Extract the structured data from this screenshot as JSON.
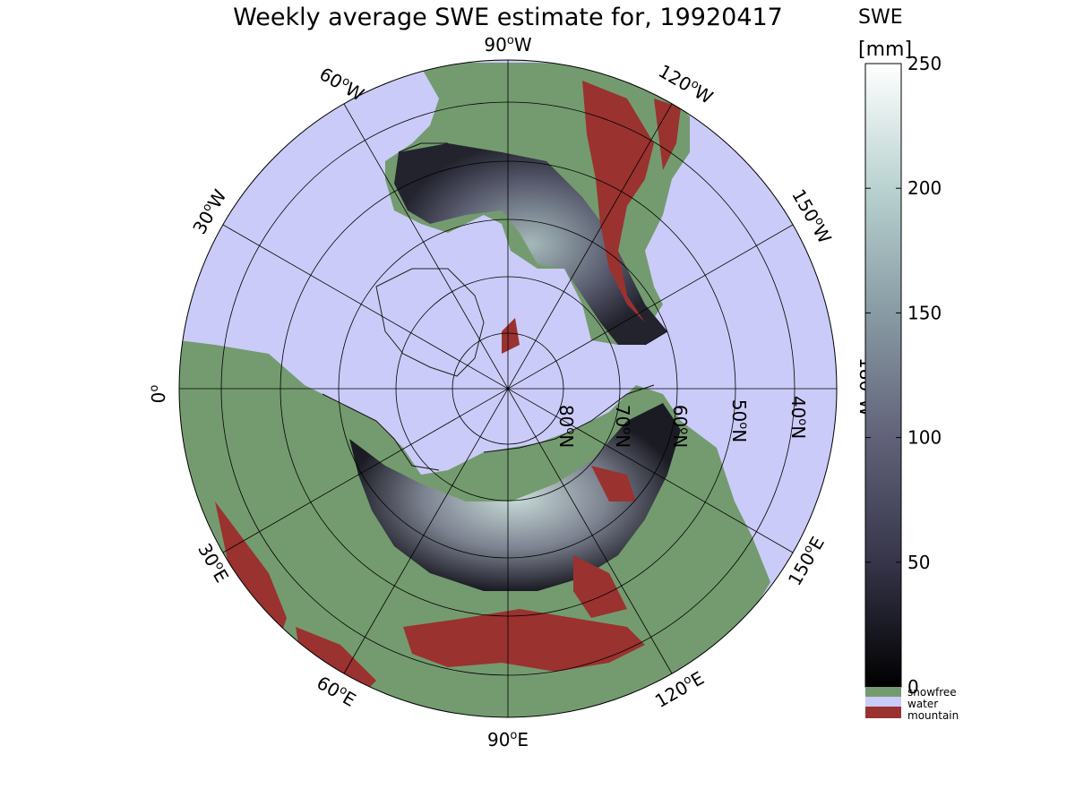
{
  "title": "Weekly average SWE estimate for, 19920417",
  "colorbar": {
    "label_line1": "SWE",
    "label_line2": "[mm]",
    "ticks": [
      "0",
      "50",
      "100",
      "150",
      "200",
      "250"
    ],
    "range": [
      0,
      250
    ],
    "categories": [
      {
        "label": "snowfree",
        "color": "#749b6f"
      },
      {
        "label": "water",
        "color": "#cbcbf9"
      },
      {
        "label": "mountain",
        "color": "#9a3230"
      }
    ]
  },
  "map": {
    "projection": "north polar stereographic",
    "ocean_color": "#cbcbf9",
    "land_color": "#749b6f",
    "mountain_color": "#9a3230",
    "longitude_labels": [
      {
        "label": "90°W",
        "sup": "o",
        "base": "90",
        "dir": "W"
      },
      {
        "label": "60°W",
        "sup": "o",
        "base": "60",
        "dir": "W"
      },
      {
        "label": "120°W",
        "sup": "o",
        "base": "120",
        "dir": "W"
      },
      {
        "label": "30°W",
        "sup": "o",
        "base": "30",
        "dir": "W"
      },
      {
        "label": "150°W",
        "sup": "o",
        "base": "150",
        "dir": "W"
      },
      {
        "label": "0°",
        "sup": "o",
        "base": "0",
        "dir": ""
      },
      {
        "label": "180°W",
        "sup": "o",
        "base": "180",
        "dir": "W"
      },
      {
        "label": "30°E",
        "sup": "o",
        "base": "30",
        "dir": "E"
      },
      {
        "label": "150°E",
        "sup": "o",
        "base": "150",
        "dir": "E"
      },
      {
        "label": "60°E",
        "sup": "o",
        "base": "60",
        "dir": "E"
      },
      {
        "label": "120°E",
        "sup": "o",
        "base": "120",
        "dir": "E"
      },
      {
        "label": "90°E",
        "sup": "o",
        "base": "90",
        "dir": "E"
      }
    ],
    "latitude_labels": [
      {
        "label": "80°N",
        "base": "80",
        "dir": "N"
      },
      {
        "label": "70°N",
        "base": "70",
        "dir": "N"
      },
      {
        "label": "60°N",
        "base": "60",
        "dir": "N"
      },
      {
        "label": "50°N",
        "base": "50",
        "dir": "N"
      },
      {
        "label": "40°N",
        "base": "40",
        "dir": "N"
      }
    ]
  }
}
